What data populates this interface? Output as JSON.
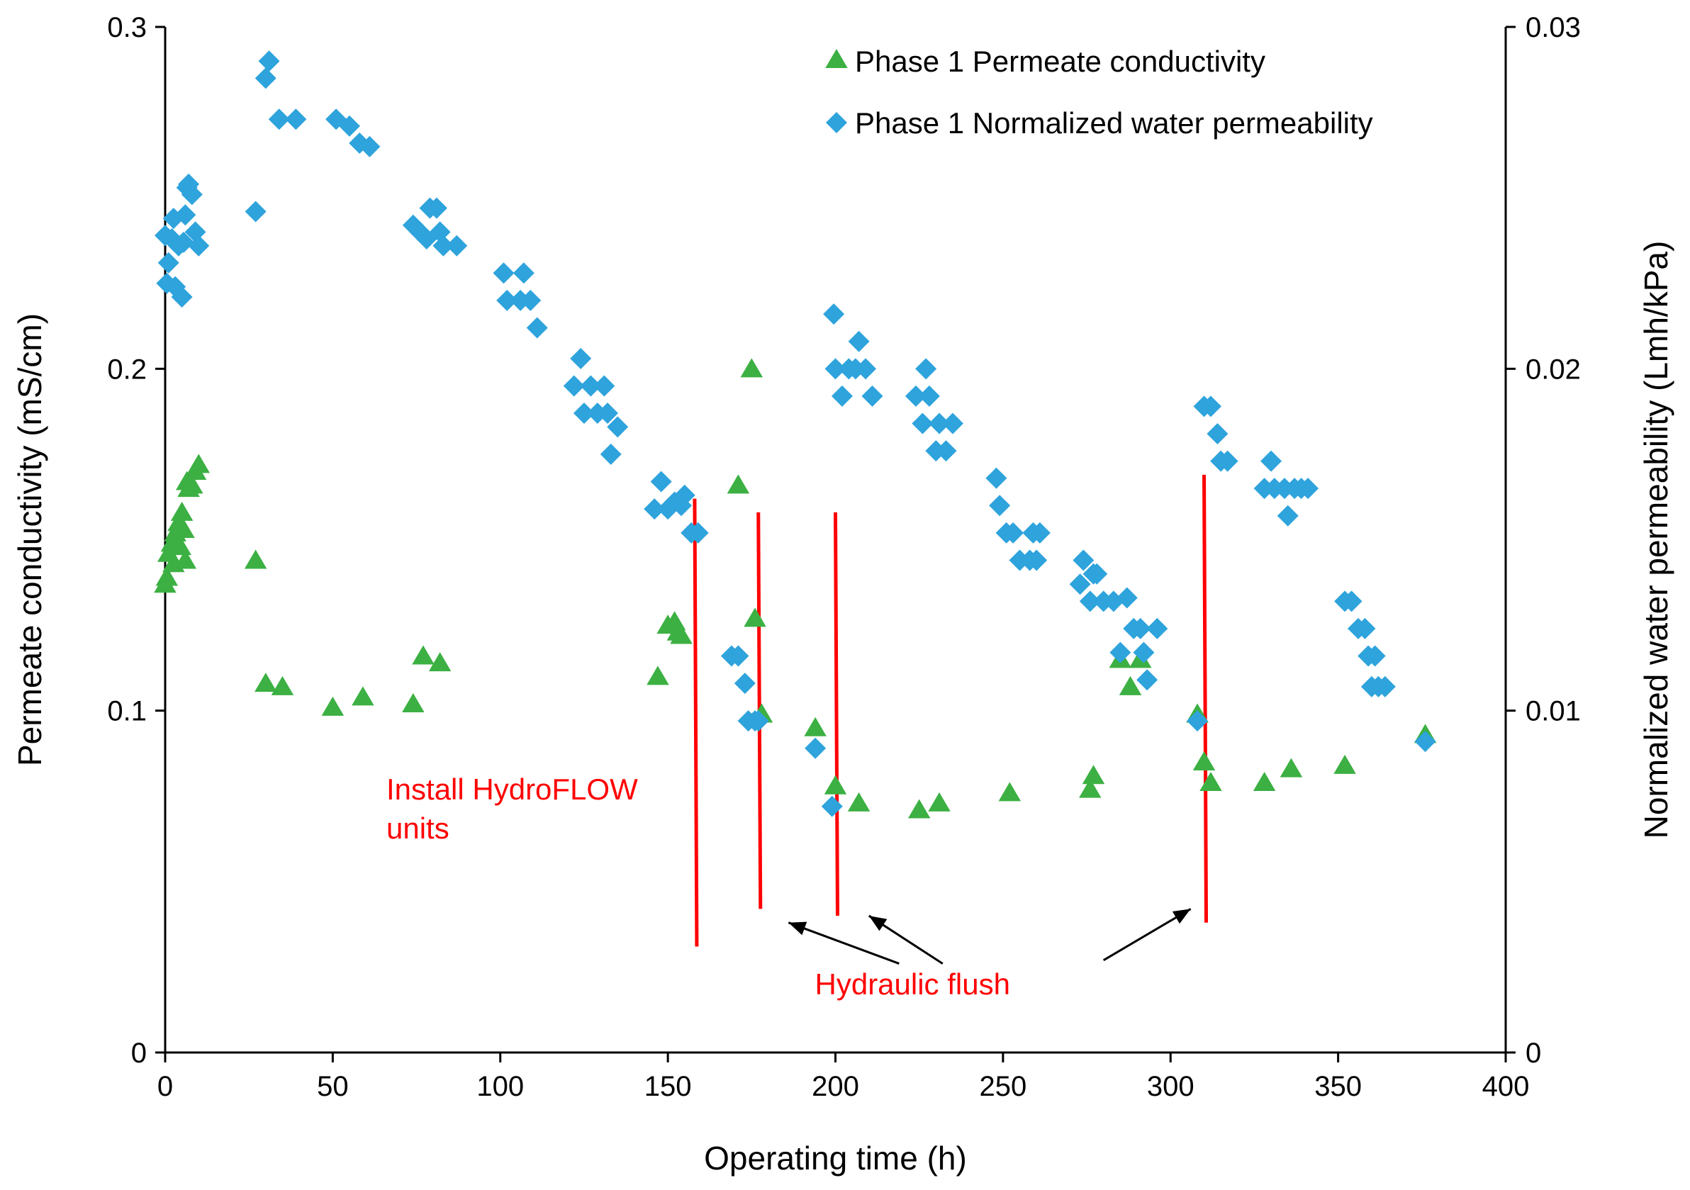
{
  "chart_data": {
    "type": "scatter",
    "title": "",
    "xlabel": "Operating time (h)",
    "ylabel_left": "Permeate conductivity (mS/cm)",
    "ylabel_right": "Normalized water permeability (Lmh/kPa)",
    "xlim": [
      0,
      400
    ],
    "ylim_left": [
      0,
      0.3
    ],
    "ylim_right": [
      0,
      0.03
    ],
    "xticks": [
      0,
      50,
      100,
      150,
      200,
      250,
      300,
      350,
      400
    ],
    "xtick_labels": [
      "0",
      "50",
      "100",
      "150",
      "200",
      "250",
      "300",
      "350",
      "400"
    ],
    "yticks_left": [
      0,
      0.1,
      0.2,
      0.3
    ],
    "ytick_labels_left": [
      "0",
      "0.1",
      "0.2",
      "0.3"
    ],
    "yticks_right": [
      0,
      0.01,
      0.02,
      0.03
    ],
    "ytick_labels_right": [
      "0",
      "0.01",
      "0.02",
      "0.03"
    ],
    "grid": false,
    "legend_position": "top-right",
    "series": [
      {
        "name": "Phase 1 Permeate conductivity",
        "axis": "left",
        "marker": "triangle",
        "color": "#3cb043",
        "points": [
          [
            0,
            0.137
          ],
          [
            0.5,
            0.139
          ],
          [
            1,
            0.146
          ],
          [
            2,
            0.149
          ],
          [
            2.5,
            0.143
          ],
          [
            3,
            0.152
          ],
          [
            4,
            0.155
          ],
          [
            4.5,
            0.148
          ],
          [
            5,
            0.158
          ],
          [
            5.5,
            0.153
          ],
          [
            6,
            0.144
          ],
          [
            6.5,
            0.167
          ],
          [
            7,
            0.165
          ],
          [
            8,
            0.166
          ],
          [
            9,
            0.17
          ],
          [
            10,
            0.172
          ],
          [
            27,
            0.144
          ],
          [
            30,
            0.108
          ],
          [
            35,
            0.107
          ],
          [
            50,
            0.101
          ],
          [
            59,
            0.104
          ],
          [
            74,
            0.102
          ],
          [
            77,
            0.116
          ],
          [
            82,
            0.114
          ],
          [
            147,
            0.11
          ],
          [
            150,
            0.125
          ],
          [
            152,
            0.126
          ],
          [
            153,
            0.123
          ],
          [
            154,
            0.122
          ],
          [
            171,
            0.166
          ],
          [
            175,
            0.2
          ],
          [
            176,
            0.127
          ],
          [
            178,
            0.099
          ],
          [
            194,
            0.095
          ],
          [
            200,
            0.078
          ],
          [
            207,
            0.073
          ],
          [
            225,
            0.071
          ],
          [
            231,
            0.073
          ],
          [
            252,
            0.076
          ],
          [
            276,
            0.077
          ],
          [
            277,
            0.081
          ],
          [
            285,
            0.115
          ],
          [
            288,
            0.107
          ],
          [
            291,
            0.115
          ],
          [
            308,
            0.099
          ],
          [
            310,
            0.085
          ],
          [
            312,
            0.079
          ],
          [
            328,
            0.079
          ],
          [
            336,
            0.083
          ],
          [
            352,
            0.084
          ],
          [
            376,
            0.093
          ]
        ]
      },
      {
        "name": "Phase 1 Normalized water permeability",
        "axis": "right",
        "marker": "diamond",
        "color": "#2ea3dc",
        "points": [
          [
            0,
            0.0239
          ],
          [
            0.5,
            0.0225
          ],
          [
            1,
            0.0231
          ],
          [
            2,
            0.0238
          ],
          [
            2.5,
            0.0244
          ],
          [
            3,
            0.0224
          ],
          [
            4,
            0.0236
          ],
          [
            5,
            0.0221
          ],
          [
            5.5,
            0.0237
          ],
          [
            6,
            0.0245
          ],
          [
            6.5,
            0.0253
          ],
          [
            7,
            0.0254
          ],
          [
            8,
            0.0251
          ],
          [
            9,
            0.024
          ],
          [
            10,
            0.0236
          ],
          [
            27,
            0.0246
          ],
          [
            30,
            0.0285
          ],
          [
            31,
            0.029
          ],
          [
            34,
            0.0273
          ],
          [
            39,
            0.0273
          ],
          [
            51,
            0.0273
          ],
          [
            55,
            0.0271
          ],
          [
            58,
            0.0266
          ],
          [
            61,
            0.0265
          ],
          [
            74,
            0.0242
          ],
          [
            76,
            0.024
          ],
          [
            78,
            0.0238
          ],
          [
            79,
            0.0247
          ],
          [
            81,
            0.0247
          ],
          [
            82,
            0.024
          ],
          [
            83,
            0.0236
          ],
          [
            87,
            0.0236
          ],
          [
            101,
            0.0228
          ],
          [
            102,
            0.022
          ],
          [
            106,
            0.022
          ],
          [
            107,
            0.0228
          ],
          [
            109,
            0.022
          ],
          [
            111,
            0.0212
          ],
          [
            122,
            0.0195
          ],
          [
            124,
            0.0203
          ],
          [
            125,
            0.0187
          ],
          [
            127,
            0.0195
          ],
          [
            129,
            0.0187
          ],
          [
            131,
            0.0195
          ],
          [
            132,
            0.0187
          ],
          [
            133,
            0.0175
          ],
          [
            135,
            0.0183
          ],
          [
            146,
            0.0159
          ],
          [
            148,
            0.0167
          ],
          [
            150,
            0.0159
          ],
          [
            152,
            0.0161
          ],
          [
            154,
            0.016
          ],
          [
            155,
            0.0163
          ],
          [
            157,
            0.0152
          ],
          [
            159,
            0.0152
          ],
          [
            169,
            0.0116
          ],
          [
            171,
            0.0116
          ],
          [
            173,
            0.0108
          ],
          [
            174,
            0.0097
          ],
          [
            176,
            0.0097
          ],
          [
            177,
            0.0097
          ],
          [
            194,
            0.0089
          ],
          [
            199,
            0.0072
          ],
          [
            199.5,
            0.0216
          ],
          [
            200,
            0.02
          ],
          [
            202,
            0.0192
          ],
          [
            204,
            0.02
          ],
          [
            206,
            0.02
          ],
          [
            207,
            0.0208
          ],
          [
            209,
            0.02
          ],
          [
            211,
            0.0192
          ],
          [
            224,
            0.0192
          ],
          [
            226,
            0.0184
          ],
          [
            227,
            0.02
          ],
          [
            228,
            0.0192
          ],
          [
            230,
            0.0176
          ],
          [
            231,
            0.0184
          ],
          [
            233,
            0.0176
          ],
          [
            235,
            0.0184
          ],
          [
            248,
            0.0168
          ],
          [
            249,
            0.016
          ],
          [
            251,
            0.0152
          ],
          [
            253,
            0.0152
          ],
          [
            255,
            0.0144
          ],
          [
            258,
            0.0144
          ],
          [
            259,
            0.0152
          ],
          [
            260,
            0.0144
          ],
          [
            261,
            0.0152
          ],
          [
            273,
            0.0137
          ],
          [
            274,
            0.0144
          ],
          [
            276,
            0.0132
          ],
          [
            277,
            0.014
          ],
          [
            278,
            0.014
          ],
          [
            280,
            0.0132
          ],
          [
            283,
            0.0132
          ],
          [
            285,
            0.0117
          ],
          [
            287,
            0.0133
          ],
          [
            289,
            0.0124
          ],
          [
            291,
            0.0124
          ],
          [
            292,
            0.0117
          ],
          [
            293,
            0.0109
          ],
          [
            296,
            0.0124
          ],
          [
            308,
            0.0097
          ],
          [
            310,
            0.0189
          ],
          [
            312,
            0.0189
          ],
          [
            314,
            0.0181
          ],
          [
            315,
            0.0173
          ],
          [
            317,
            0.0173
          ],
          [
            328,
            0.0165
          ],
          [
            330,
            0.0173
          ],
          [
            331,
            0.0165
          ],
          [
            334,
            0.0165
          ],
          [
            335,
            0.0157
          ],
          [
            337,
            0.0165
          ],
          [
            339,
            0.0165
          ],
          [
            341,
            0.0165
          ],
          [
            352,
            0.0132
          ],
          [
            354,
            0.0132
          ],
          [
            356,
            0.0124
          ],
          [
            358,
            0.0124
          ],
          [
            359,
            0.0116
          ],
          [
            361,
            0.0116
          ],
          [
            360,
            0.0107
          ],
          [
            362,
            0.0107
          ],
          [
            364,
            0.0107
          ],
          [
            376,
            0.0091
          ]
        ]
      }
    ],
    "event_lines": [
      {
        "x": 158,
        "y_top": 0.162,
        "y_bottom": 0.031
      },
      {
        "x": 177,
        "y_top": 0.158,
        "y_bottom": 0.042
      },
      {
        "x": 200,
        "y_top": 0.158,
        "y_bottom": 0.04
      },
      {
        "x": 310,
        "y_top": 0.169,
        "y_bottom": 0.038
      }
    ],
    "annotations": [
      {
        "id": "install",
        "lines": [
          "Install HydroFLOW",
          "units"
        ],
        "x": 66,
        "y": 0.074,
        "color": "#ff0000"
      },
      {
        "id": "flush",
        "text": "Hydraulic flush",
        "x": 223,
        "y": 0.017,
        "color": "#ff0000",
        "arrows": [
          {
            "from_x": 219,
            "from_y": 0.026,
            "to_x": 186,
            "to_y": 0.038
          },
          {
            "from_x": 232,
            "from_y": 0.026,
            "to_x": 210,
            "to_y": 0.04
          },
          {
            "from_x": 280,
            "from_y": 0.027,
            "to_x": 306,
            "to_y": 0.042
          }
        ]
      }
    ]
  }
}
